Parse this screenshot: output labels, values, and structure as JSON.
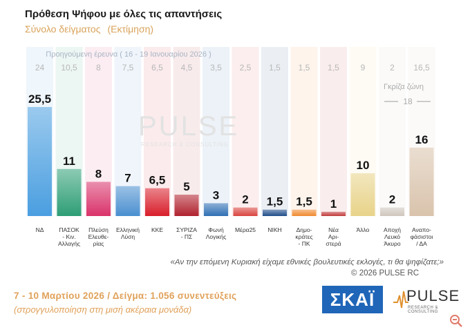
{
  "header": {
    "title": "Πρόθεση Ψήφου με όλες τις απαντήσεις",
    "subtitle_left": "Σύνολο δείγματος",
    "subtitle_right": "(Εκτίμηση)"
  },
  "chart_data": {
    "type": "bar",
    "previous_label": "Προηγούμενη έρευνα ( 16 - 19 Ιανουαρίου 2026 )",
    "categories": [
      "ΝΔ",
      "ΠΑΣΟΚ - Κιν. Αλλαγής",
      "Πλεύση Ελευθε- ρίας",
      "Ελληνική Λύση",
      "ΚΚΕ",
      "ΣΥΡΙΖΑ - ΠΣ",
      "Φωνή Λογικής",
      "Μέρα25",
      "ΝΙΚΗ",
      "Δημο- κράτες - ΠΚ",
      "Νέα Αρι- στερά",
      "Άλλο",
      "Αποχή Λευκό Άκυρο",
      "Αναπο- φάσιστοι / ΔΑ"
    ],
    "category_lines": [
      [
        "ΝΔ"
      ],
      [
        "ΠΑΣΟΚ",
        "- Κιν.",
        "Αλλαγής"
      ],
      [
        "Πλεύση",
        "Ελευθε-",
        "ρίας"
      ],
      [
        "Ελληνική",
        "Λύση"
      ],
      [
        "ΚΚΕ"
      ],
      [
        "ΣΥΡΙΖΑ",
        "- ΠΣ"
      ],
      [
        "Φωνή",
        "Λογικής"
      ],
      [
        "Μέρα25"
      ],
      [
        "ΝΙΚΗ"
      ],
      [
        "Δημο-",
        "κράτες",
        "- ΠΚ"
      ],
      [
        "Νέα",
        "Αρι-",
        "στερά"
      ],
      [
        "Άλλο"
      ],
      [
        "Αποχή",
        "Λευκό",
        "Άκυρο"
      ],
      [
        "Αναπο-",
        "φάσιστοι",
        "/ ΔΑ"
      ]
    ],
    "values": [
      25.5,
      11,
      8,
      7,
      6.5,
      5,
      3,
      2,
      1.5,
      1.5,
      1,
      10,
      2,
      16
    ],
    "value_labels": [
      "25,5",
      "11",
      "8",
      "7",
      "6,5",
      "5",
      "3",
      "2",
      "1,5",
      "1,5",
      "1",
      "10",
      "2",
      "16"
    ],
    "previous_values": [
      24,
      10.5,
      8,
      7.5,
      6.5,
      4.5,
      3.5,
      2.5,
      1.5,
      1.5,
      1.5,
      9,
      2,
      16.5
    ],
    "previous_labels": [
      "24",
      "10,5",
      "8",
      "7,5",
      "6,5",
      "4,5",
      "3,5",
      "2,5",
      "1,5",
      "1,5",
      "1,5",
      "9",
      "2",
      "16,5"
    ],
    "colors": [
      "#4a9ee0",
      "#2e9e76",
      "#d9336a",
      "#4a8fd0",
      "#d81e2a",
      "#b0222e",
      "#2f6fb4",
      "#d9443f",
      "#1f4d8a",
      "#f08a30",
      "#c23a3a",
      "#e8d389",
      "#cfc6bd",
      "#d9c3ac"
    ],
    "grey_zone_label": "Γκρίζα ζώνη",
    "grey_zone_value": "18",
    "ylim": [
      0,
      30
    ],
    "legend": "none",
    "grid": false
  },
  "watermark": {
    "brand": "PULSE",
    "tagline": "RESEARCH & CONSULTING"
  },
  "footer": {
    "question": "«Αν την επόμενη Κυριακή είχαμε εθνικές βουλευτικές εκλογές, τι θα ψηφίζατε;»",
    "copyright": "© 2026 PULSE RC",
    "dates": "7 - 10 Μαρτίου 2026 / Δείγμα: 1.056 συνεντεύξεις",
    "rounding_note": "(στρογγυλοποίηση στη μισή ακέραια μονάδα)",
    "skai_logo": "ΣΚΑΪ",
    "pulse_logo": "PULSE",
    "pulse_tagline": "RESEARCH & CONSULTING"
  }
}
